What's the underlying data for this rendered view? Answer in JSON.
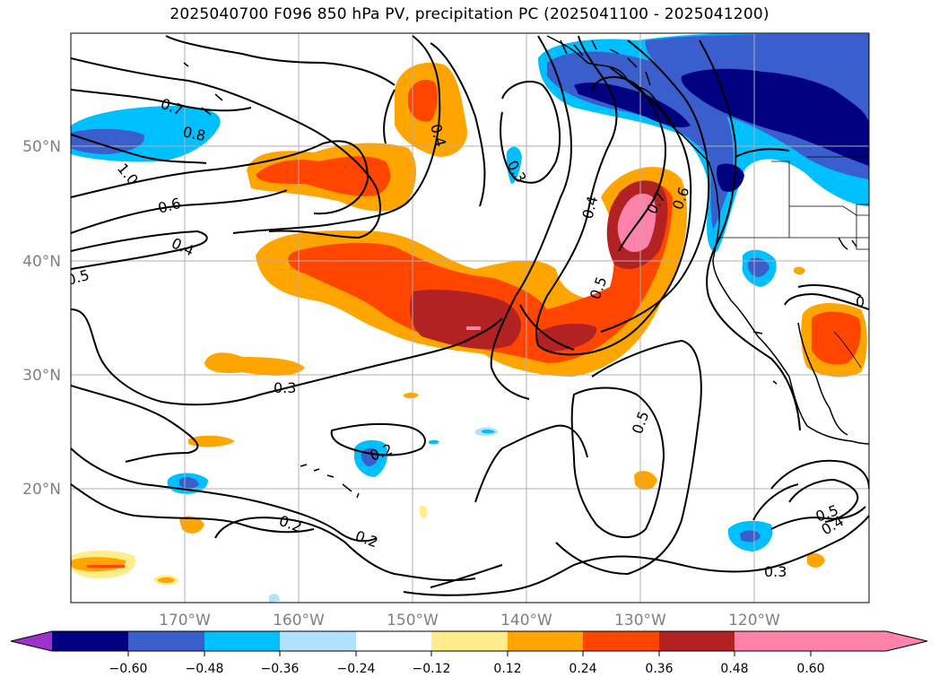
{
  "title": "2025040700 F096 850 hPa PV, precipitation PC (2025041100 - 2025041200)",
  "lat_labels": [
    "50°N",
    "40°N",
    "30°N",
    "20°N"
  ],
  "lon_labels": [
    "170°W",
    "160°W",
    "150°W",
    "140°W",
    "130°W",
    "120°W"
  ],
  "colorbar": {
    "colors": [
      "#9933cc",
      "#000080",
      "#3a5fcd",
      "#00bfff",
      "#b0e2ff",
      "#ffffff",
      "#ffec8b",
      "#ffa500",
      "#ff4500",
      "#b22222",
      "#ff82ab"
    ],
    "tick_labels": [
      "−0.60",
      "−0.48",
      "−0.36",
      "−0.24",
      "−0.12",
      "0.12",
      "0.24",
      "0.36",
      "0.48",
      "0.60"
    ]
  },
  "contour_labels": {
    "c07": "0.7",
    "c08": "0.8",
    "c10": "1.0",
    "c06": "0.6",
    "c04a": "0.4",
    "c05a": "0.5",
    "c04b": "0.4",
    "c03a": "0.3",
    "c04c": "0.4",
    "c05b": "0.5",
    "c07b": "0.7",
    "c06b": "0.6",
    "c02a": "0.2",
    "c03b": "0.3",
    "c05c": "0.5",
    "c02b": "0.2",
    "c02c": "0.2",
    "c03c": "0.3",
    "c05d": "0.5",
    "c04d": "0.4",
    "c0e": "0"
  },
  "map_features": {
    "coastline_color": "#000000",
    "grid_color": "#b0b0b0",
    "contour_color": "#000000"
  }
}
